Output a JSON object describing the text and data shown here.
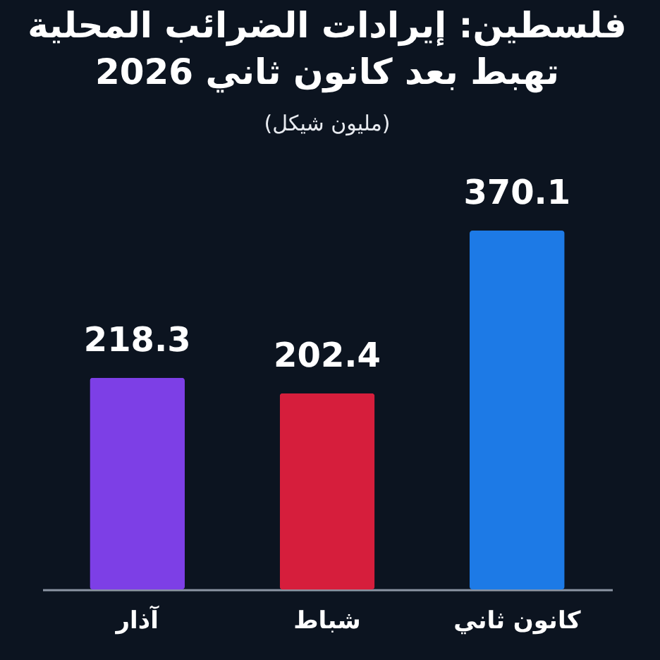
{
  "chart_data": {
    "type": "bar",
    "title": "فلسطين: إيرادات الضرائب المحلية\nتهبط بعد كانون ثاني 2026",
    "subtitle": "(مليون شيكل)",
    "categories": [
      "آذار",
      "شباط",
      "كانون ثاني"
    ],
    "values": [
      218.3,
      202.4,
      370.1
    ],
    "colors": [
      "#7d3fe6",
      "#d61e3c",
      "#1d7ae6"
    ],
    "data_labels": true
  }
}
